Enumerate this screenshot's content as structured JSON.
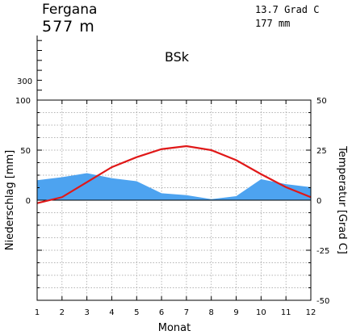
{
  "header": {
    "station": "Fergana",
    "elevation": "577 m",
    "annual_temp": "13.7 Grad C",
    "annual_precip": "177 mm",
    "climate_class": "BSk"
  },
  "chart_data": {
    "type": "line",
    "title": "",
    "xlabel": "Monat",
    "ylabel_left": "Niederschlag [mm]",
    "ylabel_right": "Temperatur [Grad C]",
    "x": [
      1,
      2,
      3,
      4,
      5,
      6,
      7,
      8,
      9,
      10,
      11,
      12
    ],
    "x_tick_labels": [
      "1",
      "2",
      "3",
      "4",
      "5",
      "6",
      "7",
      "8",
      "9",
      "10",
      "11",
      "12"
    ],
    "precip_axis": {
      "ylim": [
        -100,
        100
      ],
      "ticks": [
        0,
        50,
        100
      ],
      "upper_ticks": [
        300
      ],
      "extended_scale": true
    },
    "temp_axis": {
      "ylim": [
        -50,
        50
      ],
      "ticks": [
        -50,
        -25,
        0,
        25,
        50
      ]
    },
    "grid": true,
    "series": [
      {
        "name": "",
        "kind": "area",
        "axis": "left",
        "color": "#4da3f0",
        "values": [
          20,
          23,
          27,
          22,
          19,
          7,
          5,
          1,
          4,
          21,
          16,
          13
        ]
      },
      {
        "name": "",
        "kind": "line",
        "axis": "right",
        "color": "#e01818",
        "values": [
          -1.5,
          1.5,
          9,
          16.5,
          21.5,
          25.5,
          27,
          25,
          20,
          13,
          6.5,
          1.5
        ]
      }
    ]
  }
}
